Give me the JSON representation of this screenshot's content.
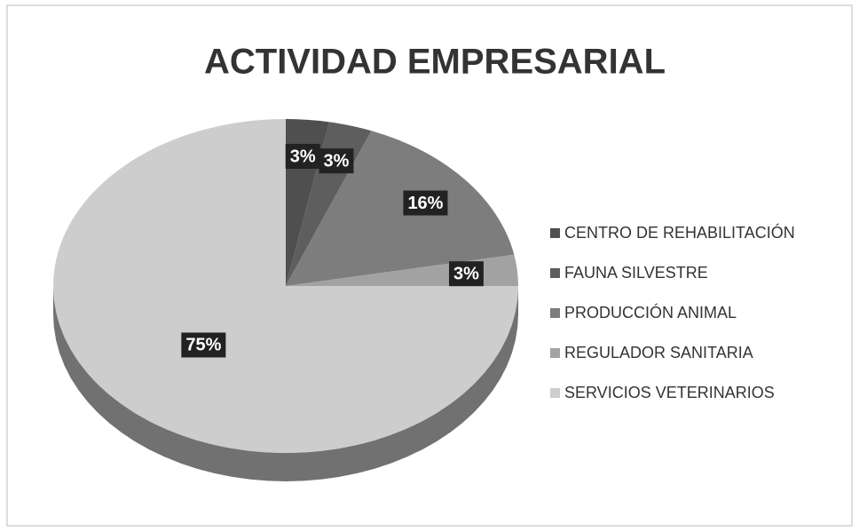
{
  "chart_data": {
    "type": "pie",
    "title": "ACTIVIDAD EMPRESARIAL",
    "categories": [
      "CENTRO DE REHABILITACIÓN",
      "FAUNA SILVESTRE",
      "PRODUCCIÓN ANIMAL",
      "REGULADOR SANITARIA",
      "SERVICIOS VETERINARIOS"
    ],
    "values": [
      3,
      3,
      16,
      3,
      75
    ],
    "value_labels": [
      "3%",
      "3%",
      "16%",
      "3%",
      "75%"
    ],
    "colors": [
      "#4f4f4f",
      "#5e5e5e",
      "#7d7d7d",
      "#a2a2a2",
      "#cdcdcd"
    ],
    "legend": "right"
  }
}
